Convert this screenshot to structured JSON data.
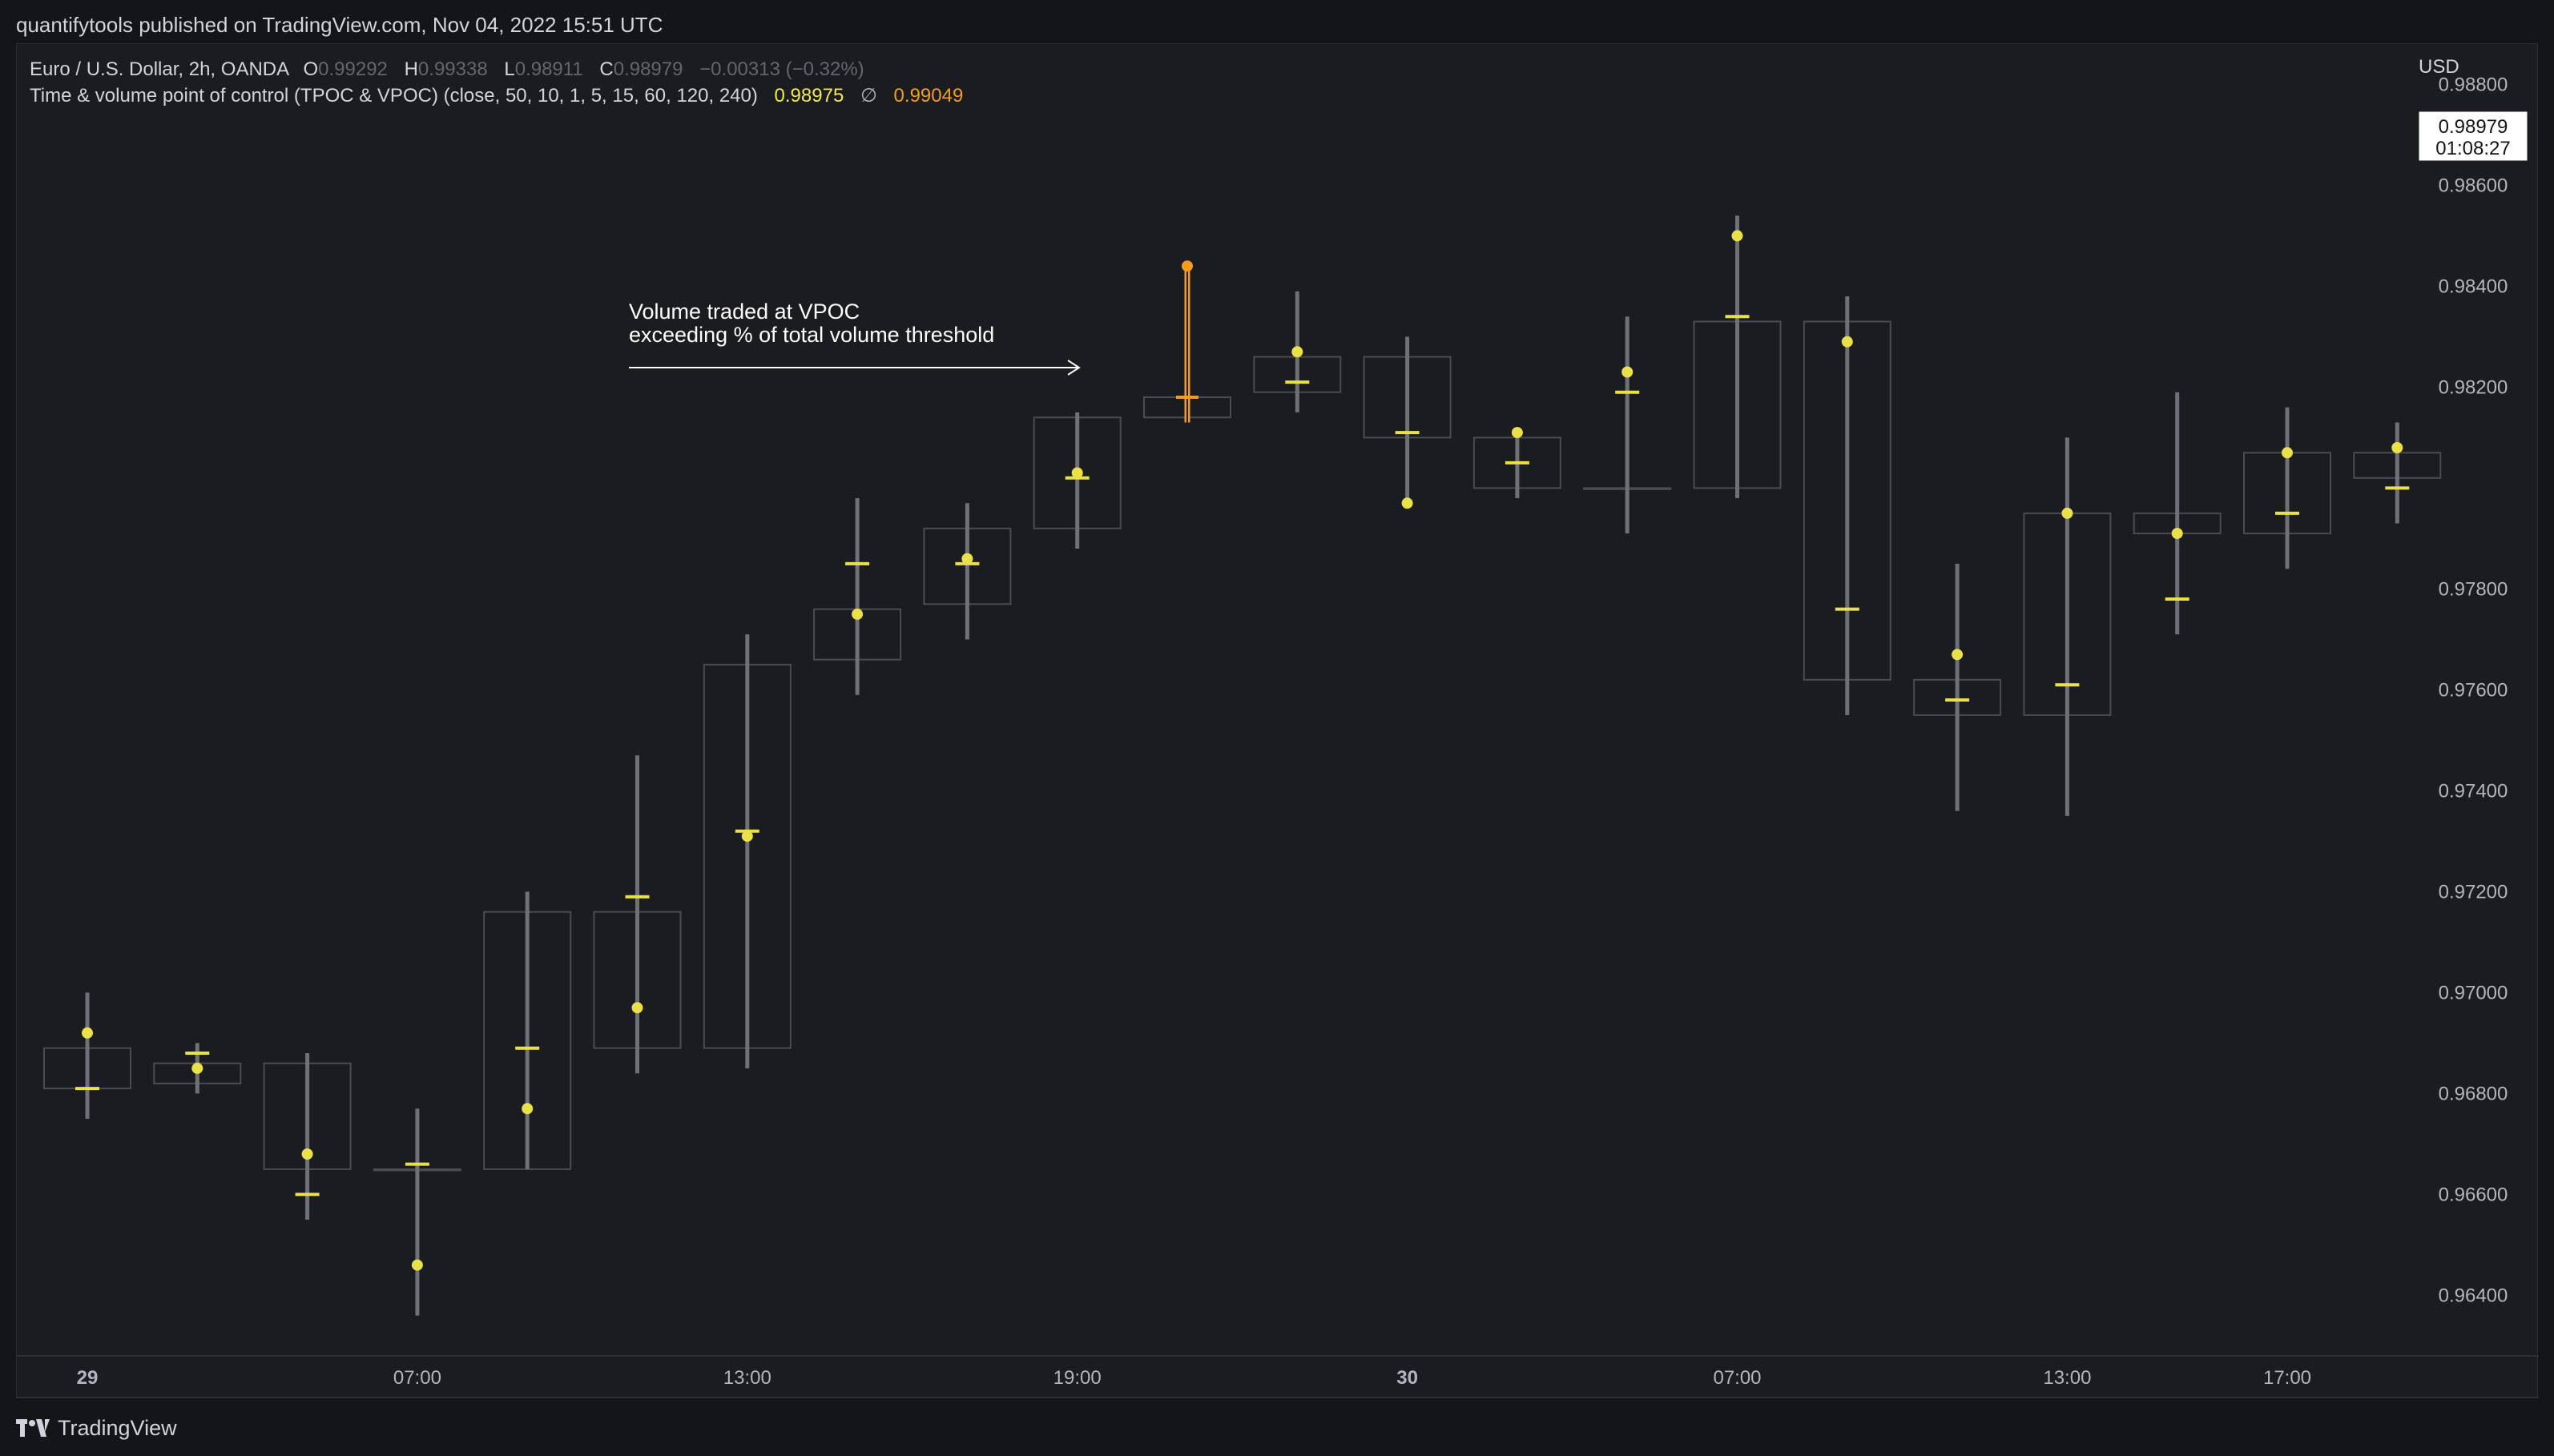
{
  "header": {
    "publisher": "quantifytools published on TradingView.com, Nov 04, 2022 15:51 UTC"
  },
  "legend": {
    "symbol": "Euro / U.S. Dollar, 2h, OANDA",
    "o_label": "O",
    "o_value": "0.99292",
    "h_label": "H",
    "h_value": "0.99338",
    "l_label": "L",
    "l_value": "0.98911",
    "c_label": "C",
    "c_value": "0.98979",
    "change": "−0.00313 (−0.32%)",
    "indicator": "Time & volume point of control (TPOC & VPOC) (close, 50, 10, 1, 5, 15, 60, 120, 240)",
    "ind_value1": "0.98975",
    "ind_symbol": "∅",
    "ind_value2": "0.99049"
  },
  "price_axis": {
    "currency": "USD",
    "last_price": "0.98979",
    "countdown": "01:08:27"
  },
  "annotation": {
    "line1": "Volume traded at VPOC",
    "line2": "exceeding % of total volume threshold"
  },
  "footer": {
    "brand": "TradingView"
  },
  "colors": {
    "background": "#1b1c1f",
    "candle_outline": "#4a4c52",
    "wick": "#6f7178",
    "poc_yellow": "#e9e04a",
    "highlight_orange": "#f39c1e",
    "axis_text": "#b2b5be"
  },
  "chart_data": {
    "type": "candlestick",
    "title": "Euro / U.S. Dollar, 2h, OANDA",
    "ylabel": "USD",
    "ylim": [
      0.9628,
      0.9888
    ],
    "y_ticks": [
      "0.96400",
      "0.96600",
      "0.96800",
      "0.97000",
      "0.97200",
      "0.97400",
      "0.97600",
      "0.97800",
      "0.98200",
      "0.98400",
      "0.98600",
      "0.98800"
    ],
    "x_ticks": [
      {
        "index": 0,
        "label": "29",
        "bold": true
      },
      {
        "index": 3,
        "label": "07:00",
        "bold": false
      },
      {
        "index": 6,
        "label": "13:00",
        "bold": false
      },
      {
        "index": 9,
        "label": "19:00",
        "bold": false
      },
      {
        "index": 12,
        "label": "30",
        "bold": true
      },
      {
        "index": 15,
        "label": "07:00",
        "bold": false
      },
      {
        "index": 18,
        "label": "13:00",
        "bold": false
      },
      {
        "index": 20,
        "label": "17:00",
        "bold": false
      }
    ],
    "series_markers": [
      "TPOC (dot)",
      "VPOC (dash)"
    ],
    "candles": [
      {
        "open": 0.9681,
        "high": 0.97,
        "low": 0.9675,
        "close": 0.9689,
        "tpoc": 0.9692,
        "vpoc": 0.9681
      },
      {
        "open": 0.9686,
        "high": 0.969,
        "low": 0.968,
        "close": 0.9682,
        "tpoc": 0.9685,
        "vpoc": 0.9688
      },
      {
        "open": 0.9686,
        "high": 0.9688,
        "low": 0.9655,
        "close": 0.9665,
        "tpoc": 0.9668,
        "vpoc": 0.966
      },
      {
        "open": 0.9665,
        "high": 0.9677,
        "low": 0.9636,
        "close": 0.9665,
        "tpoc": 0.9646,
        "vpoc": 0.9666
      },
      {
        "open": 0.9665,
        "high": 0.972,
        "low": 0.9665,
        "close": 0.9716,
        "tpoc": 0.9677,
        "vpoc": 0.9689
      },
      {
        "open": 0.9689,
        "high": 0.9747,
        "low": 0.9684,
        "close": 0.9716,
        "tpoc": 0.9697,
        "vpoc": 0.9719
      },
      {
        "open": 0.9689,
        "high": 0.9771,
        "low": 0.9685,
        "close": 0.9765,
        "tpoc": 0.9731,
        "vpoc": 0.9732
      },
      {
        "open": 0.9766,
        "high": 0.9798,
        "low": 0.9759,
        "close": 0.9776,
        "tpoc": 0.9775,
        "vpoc": 0.9785
      },
      {
        "open": 0.9777,
        "high": 0.9797,
        "low": 0.977,
        "close": 0.9792,
        "tpoc": 0.9786,
        "vpoc": 0.9785
      },
      {
        "open": 0.9792,
        "high": 0.9815,
        "low": 0.9788,
        "close": 0.9814,
        "tpoc": 0.9803,
        "vpoc": 0.9802
      },
      {
        "open": 0.9814,
        "high": 0.9844,
        "low": 0.9813,
        "close": 0.9818,
        "tpoc": 0.9844,
        "vpoc": 0.9818,
        "highlight": true
      },
      {
        "open": 0.9819,
        "high": 0.9839,
        "low": 0.9815,
        "close": 0.9826,
        "tpoc": 0.9827,
        "vpoc": 0.9821
      },
      {
        "open": 0.9826,
        "high": 0.983,
        "low": 0.9797,
        "close": 0.981,
        "tpoc": 0.9797,
        "vpoc": 0.9811
      },
      {
        "open": 0.981,
        "high": 0.9812,
        "low": 0.9798,
        "close": 0.98,
        "tpoc": 0.9811,
        "vpoc": 0.9805
      },
      {
        "open": 0.98,
        "high": 0.9834,
        "low": 0.9791,
        "close": 0.98,
        "tpoc": 0.9823,
        "vpoc": 0.9819
      },
      {
        "open": 0.98,
        "high": 0.9854,
        "low": 0.9798,
        "close": 0.9833,
        "tpoc": 0.985,
        "vpoc": 0.9834
      },
      {
        "open": 0.9833,
        "high": 0.9838,
        "low": 0.9755,
        "close": 0.9762,
        "tpoc": 0.9829,
        "vpoc": 0.9776
      },
      {
        "open": 0.9762,
        "high": 0.9785,
        "low": 0.9736,
        "close": 0.9755,
        "tpoc": 0.9767,
        "vpoc": 0.9758
      },
      {
        "open": 0.9755,
        "high": 0.981,
        "low": 0.9735,
        "close": 0.9795,
        "tpoc": 0.9795,
        "vpoc": 0.9761
      },
      {
        "open": 0.9795,
        "high": 0.9819,
        "low": 0.9771,
        "close": 0.9791,
        "tpoc": 0.9791,
        "vpoc": 0.9778
      },
      {
        "open": 0.9791,
        "high": 0.9816,
        "low": 0.9784,
        "close": 0.9807,
        "tpoc": 0.9807,
        "vpoc": 0.9795
      },
      {
        "open": 0.9807,
        "high": 0.9813,
        "low": 0.9793,
        "close": 0.9802,
        "tpoc": 0.9808,
        "vpoc": 0.98
      }
    ]
  }
}
